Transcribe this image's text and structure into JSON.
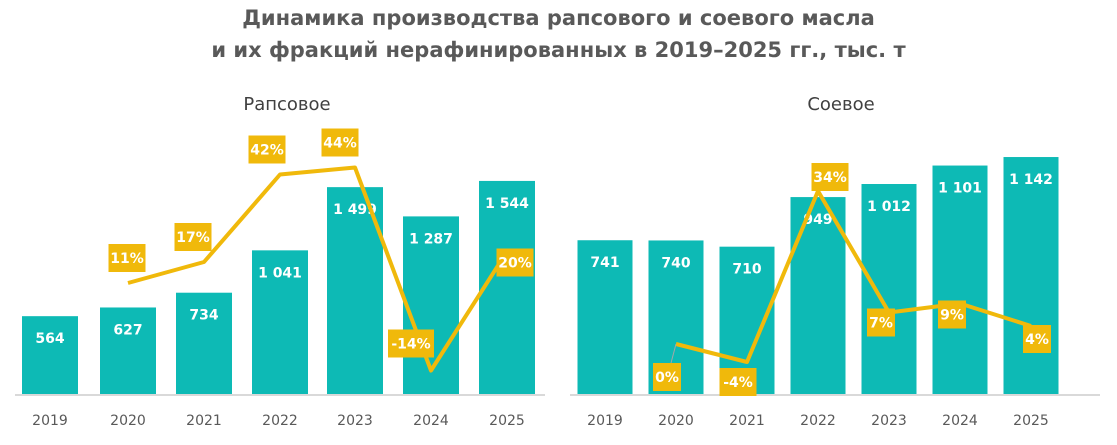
{
  "title_line1": "Динамика производства рапсового и соевого масла",
  "title_line2": "и их фракций нерафинированных в 2019–2025 гг., тыс. т",
  "colors": {
    "bars": "#0DBAB5",
    "line": "#F0B90B",
    "axis": "#D9D9D9"
  },
  "chart_data": [
    {
      "type": "bar+line",
      "title": "Рапсовое",
      "categories": [
        "2019",
        "2020",
        "2021",
        "2022",
        "2023",
        "2024",
        "2025"
      ],
      "values": [
        564,
        627,
        734,
        1041,
        1499,
        1287,
        1544
      ],
      "value_labels": [
        "564",
        "627",
        "734",
        "1 041",
        "1 499",
        "1 287",
        "1 544"
      ],
      "growth": [
        null,
        11,
        17,
        42,
        44,
        -14,
        20
      ],
      "growth_labels": [
        "",
        "11%",
        "17%",
        "42%",
        "44%",
        "-14%",
        "20%"
      ]
    },
    {
      "type": "bar+line",
      "title": "Соевое",
      "categories": [
        "2019",
        "2020",
        "2021",
        "2022",
        "2023",
        "2024",
        "2025"
      ],
      "values": [
        741,
        740,
        710,
        949,
        1012,
        1101,
        1142
      ],
      "value_labels": [
        "741",
        "740",
        "710",
        "949",
        "1 012",
        "1 101",
        "1 142"
      ],
      "growth": [
        null,
        0,
        -4,
        34,
        7,
        9,
        4
      ],
      "growth_labels": [
        "",
        "0%",
        "-4%",
        "34%",
        "7%",
        "9%",
        "4%"
      ]
    }
  ]
}
